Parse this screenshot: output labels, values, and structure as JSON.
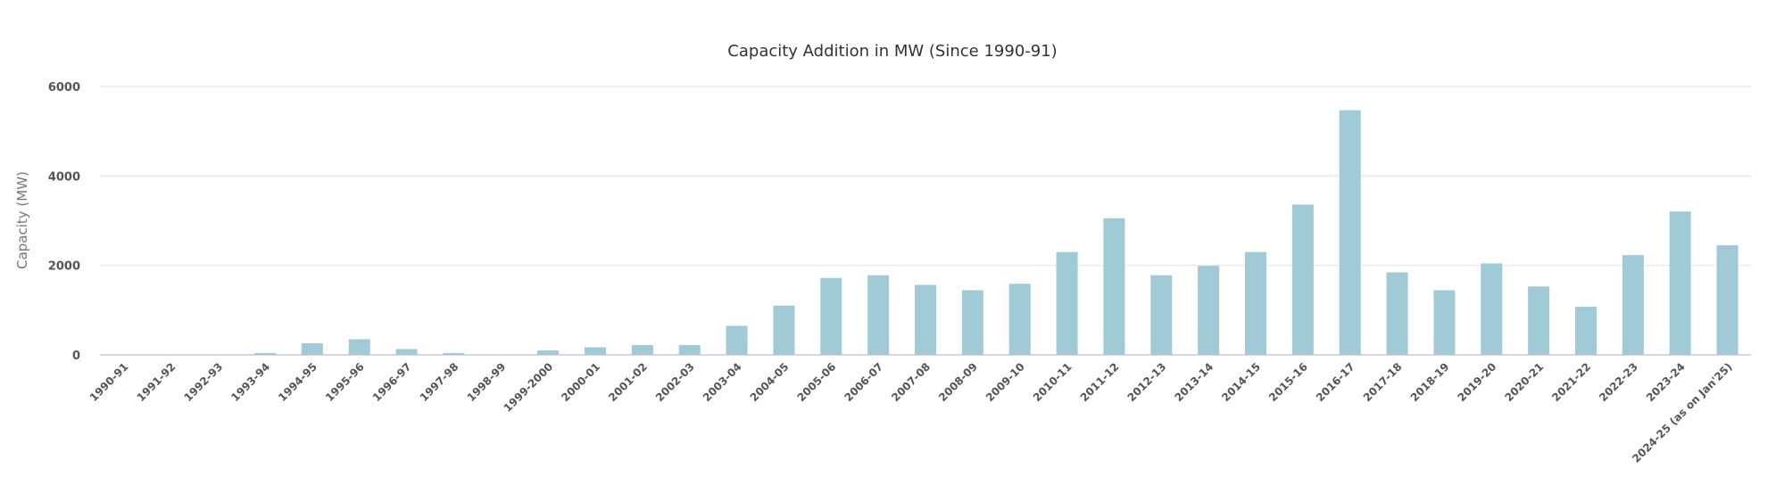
{
  "chart_data": {
    "type": "bar",
    "title": "Capacity Addition in MW (Since 1990-91)",
    "xlabel": "",
    "ylabel": "Capacity (MW)",
    "ylim": [
      0,
      6000
    ],
    "yticks": [
      0,
      2000,
      4000,
      6000
    ],
    "grid": true,
    "legend": "none",
    "bar_color": "#a0cad6",
    "categories": [
      "1990-91",
      "1991-92",
      "1992-93",
      "1993-94",
      "1994-95",
      "1995-96",
      "1996-97",
      "1997-98",
      "1998-99",
      "1999-2000",
      "2000-01",
      "2001-02",
      "2002-03",
      "2003-04",
      "2004-05",
      "2005-06",
      "2006-07",
      "2007-08",
      "2008-09",
      "2009-10",
      "2010-11",
      "2011-12",
      "2012-13",
      "2013-14",
      "2014-15",
      "2015-16",
      "2016-17",
      "2017-18",
      "2018-19",
      "2019-20",
      "2020-21",
      "2021-22",
      "2022-23",
      "2023-24",
      "2024-25 (as on Jan'25)"
    ],
    "values": [
      0,
      0,
      0,
      40,
      260,
      350,
      130,
      40,
      0,
      100,
      170,
      220,
      220,
      650,
      1100,
      1720,
      1780,
      1565,
      1445,
      1590,
      2300,
      3055,
      1780,
      1990,
      2300,
      3360,
      5470,
      1845,
      1445,
      2045,
      1530,
      1075,
      2230,
      3205,
      2450
    ]
  }
}
